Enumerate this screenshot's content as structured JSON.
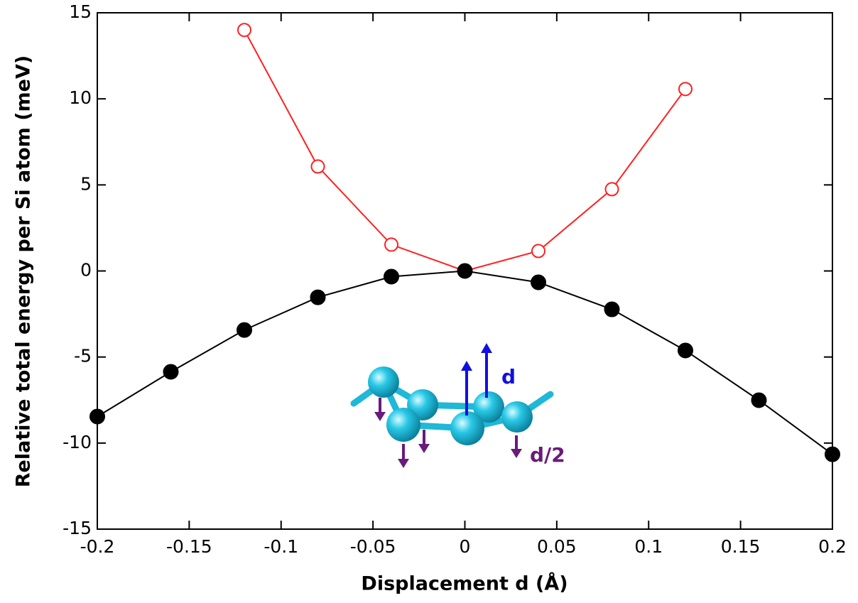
{
  "chart_data": {
    "type": "line",
    "x_label": "Displacement d (Å)",
    "y_label": "Relative total energy per Si atom (meV)",
    "xlim": [
      -0.2,
      0.2
    ],
    "xticks": [
      -0.2,
      -0.15,
      -0.1,
      -0.05,
      0,
      0.05,
      0.1,
      0.15,
      0.2
    ],
    "ylim": [
      -15,
      15
    ],
    "yticks": [
      -15,
      -10,
      -5,
      0,
      5,
      10,
      15
    ],
    "grid": false,
    "series": [
      {
        "color": "#ff2020",
        "marker": "open-circle",
        "x": [
          -0.12,
          -0.08,
          -0.04,
          0,
          0.04,
          0.08,
          0.12
        ],
        "values": [
          14.0,
          6.07,
          1.53,
          0,
          1.16,
          4.75,
          10.57
        ]
      },
      {
        "color": "#000000",
        "marker": "filled-circle",
        "x": [
          -0.2,
          -0.16,
          -0.12,
          -0.08,
          -0.04,
          0,
          0.04,
          0.08,
          0.12,
          0.16,
          0.2
        ],
        "values": [
          -8.46,
          -5.86,
          -3.43,
          -1.53,
          -0.33,
          0,
          -0.66,
          -2.23,
          -4.62,
          -7.51,
          -10.65
        ]
      }
    ],
    "annotations": [
      "d",
      "d/2"
    ]
  }
}
